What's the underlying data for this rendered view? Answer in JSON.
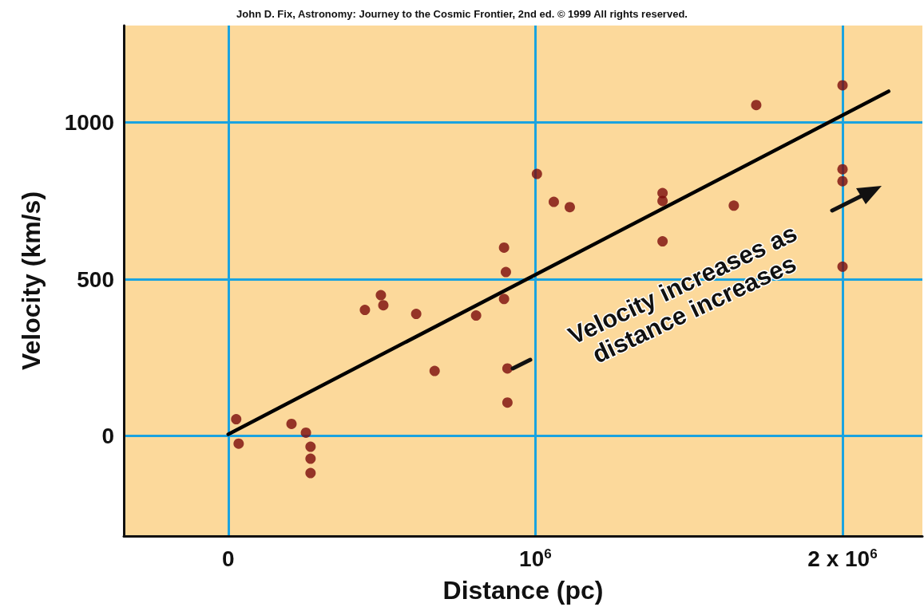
{
  "chart_data": {
    "type": "scatter",
    "title": "John D. Fix, Astronomy: Journey to the Cosmic Frontier, 2nd ed. © 1999 All rights reserved.",
    "xlabel": "Distance (pc)",
    "ylabel": "Velocity (km/s)",
    "annotations": [
      "Velocity increases as\ndistance increases"
    ],
    "series": [
      {
        "color": "#7a0a0a",
        "marker": "circle",
        "x": [
          26000,
          34000,
          206000,
          253000,
          268000,
          268000,
          268000,
          445000,
          497000,
          505000,
          612000,
          672000,
          807000,
          898000,
          904000,
          898000,
          909000,
          909000,
          1005000,
          1060000,
          1112000,
          1414000,
          1414000,
          1414000,
          1646000,
          1719000,
          2000000,
          2000000,
          2000000,
          2000000
        ],
        "values": [
          53,
          -25,
          38,
          10,
          -35,
          -73,
          -119,
          402,
          449,
          417,
          389,
          207,
          384,
          601,
          523,
          437,
          215,
          106,
          836,
          747,
          730,
          775,
          750,
          621,
          735,
          1056,
          1119,
          851,
          813,
          540
        ]
      },
      {
        "type": "line",
        "color": "#000000",
        "marker": "none",
        "line_style": "solid",
        "x": [
          0,
          2150000
        ],
        "values": [
          5,
          1100
        ]
      }
    ],
    "xlim": [
      -340000,
      2260000
    ],
    "xticks": [
      0,
      {
        "value": 1000000,
        "label": "10$^{6}$"
      },
      {
        "value": 2000000,
        "label": "2 x 10$^{6}$"
      }
    ],
    "ylim": [
      -320,
      1310
    ],
    "yticks": [
      0,
      500,
      1000
    ],
    "grid": true
  }
}
